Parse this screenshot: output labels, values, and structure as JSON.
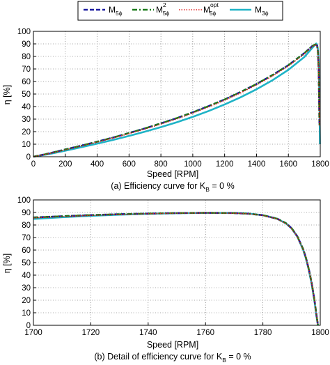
{
  "legend": [
    {
      "main": "M",
      "sub": "5ϕ",
      "sup": "",
      "color": "#1a1aa0",
      "dash": "6,3",
      "width": 2.6
    },
    {
      "main": "M",
      "sub": "5ϕ",
      "sup": "2",
      "color": "#1a7a1a",
      "dash": "7,3,2,3",
      "width": 2.4
    },
    {
      "main": "M",
      "sub": "5ϕ",
      "sup": "opt",
      "color": "#e02020",
      "dash": "1.5,2",
      "width": 1.6
    },
    {
      "main": "M",
      "sub": "3ϕ",
      "sup": "",
      "color": "#1fb3c6",
      "dash": "",
      "width": 2.6
    }
  ],
  "chart_data": [
    {
      "type": "line",
      "caption": {
        "pre": "(a) Efficiency curve for K",
        "sub": "B",
        "post": " = 0 %"
      },
      "xlabel": "Speed [RPM]",
      "ylabel": "η [%]",
      "xlim": [
        0,
        1800
      ],
      "ylim": [
        0,
        100
      ],
      "xticks": [
        0,
        200,
        400,
        600,
        800,
        1000,
        1200,
        1400,
        1600,
        1800
      ],
      "yticks": [
        0,
        10,
        20,
        30,
        40,
        50,
        60,
        70,
        80,
        90,
        100
      ],
      "grid": true,
      "series": [
        {
          "x": [
            0,
            100,
            200,
            300,
            400,
            500,
            600,
            700,
            800,
            900,
            1000,
            1100,
            1200,
            1300,
            1400,
            1500,
            1600,
            1700,
            1750,
            1770,
            1780,
            1785,
            1790,
            1795
          ],
          "y": [
            0,
            2.7,
            5.8,
            8.8,
            12.0,
            15.3,
            18.9,
            22.6,
            26.6,
            30.8,
            35.4,
            40.4,
            45.7,
            51.6,
            58.0,
            65.1,
            73.0,
            82.6,
            88.3,
            89.6,
            88.6,
            84.0,
            70.0,
            25.0
          ]
        },
        {
          "x": [
            0,
            100,
            200,
            300,
            400,
            500,
            600,
            700,
            800,
            900,
            1000,
            1100,
            1200,
            1300,
            1400,
            1500,
            1600,
            1700,
            1750,
            1770,
            1780,
            1785,
            1790,
            1795
          ],
          "y": [
            0,
            2.7,
            5.8,
            8.8,
            12.0,
            15.3,
            18.9,
            22.6,
            26.6,
            30.8,
            35.4,
            40.4,
            45.7,
            51.6,
            58.0,
            65.1,
            73.0,
            82.6,
            88.3,
            89.6,
            88.6,
            84.0,
            70.0,
            25.0
          ]
        },
        {
          "x": [
            0,
            100,
            200,
            300,
            400,
            500,
            600,
            700,
            800,
            900,
            1000,
            1100,
            1200,
            1300,
            1400,
            1500,
            1600,
            1700,
            1750,
            1770,
            1780,
            1785,
            1790,
            1795
          ],
          "y": [
            0,
            2.5,
            5.5,
            8.5,
            11.6,
            14.9,
            18.4,
            22.1,
            26.0,
            30.2,
            34.8,
            39.7,
            45.0,
            50.9,
            57.3,
            64.4,
            72.3,
            81.9,
            87.8,
            89.4,
            88.8,
            84.0,
            70.0,
            25.0
          ]
        },
        {
          "x": [
            0,
            100,
            200,
            300,
            400,
            500,
            600,
            700,
            800,
            900,
            1000,
            1100,
            1200,
            1300,
            1400,
            1500,
            1600,
            1700,
            1750,
            1770,
            1775,
            1780,
            1785,
            1790,
            1795,
            1798
          ],
          "y": [
            0,
            2.2,
            4.8,
            7.6,
            10.4,
            13.4,
            16.6,
            20.0,
            23.6,
            27.5,
            31.8,
            36.5,
            41.7,
            47.4,
            53.8,
            61.0,
            69.3,
            79.5,
            86.8,
            89.6,
            90.3,
            89.5,
            86.0,
            75.0,
            45.0,
            10.0
          ]
        }
      ]
    },
    {
      "type": "line",
      "caption": {
        "pre": "(b) Detail of efficiency curve for K",
        "sub": "B",
        "post": " = 0 %"
      },
      "xlabel": "Speed [RPM]",
      "ylabel": "η [%]",
      "xlim": [
        1700,
        1800
      ],
      "ylim": [
        0,
        100
      ],
      "xticks": [
        1700,
        1720,
        1740,
        1760,
        1780,
        1800
      ],
      "yticks": [
        0,
        10,
        20,
        30,
        40,
        50,
        60,
        70,
        80,
        90,
        100
      ],
      "grid": true,
      "series": [
        {
          "x": [
            1700,
            1710,
            1720,
            1730,
            1740,
            1750,
            1760,
            1770,
            1775,
            1780,
            1785,
            1788,
            1790,
            1792,
            1794,
            1795,
            1796,
            1797,
            1798,
            1798.7,
            1799.2
          ],
          "y": [
            86.0,
            87.0,
            87.9,
            88.6,
            89.1,
            89.5,
            89.7,
            89.5,
            89.0,
            87.8,
            85.0,
            81.5,
            77.5,
            71.0,
            61.0,
            54.0,
            45.0,
            34.0,
            20.0,
            8.0,
            0
          ]
        },
        {
          "x": [
            1700,
            1710,
            1720,
            1730,
            1740,
            1750,
            1760,
            1770,
            1775,
            1780,
            1785,
            1788,
            1790,
            1792,
            1794,
            1795,
            1796,
            1797,
            1798,
            1798.7,
            1799.2
          ],
          "y": [
            86.0,
            87.0,
            87.9,
            88.6,
            89.1,
            89.5,
            89.7,
            89.5,
            89.0,
            87.8,
            85.0,
            81.5,
            77.5,
            71.0,
            61.0,
            54.0,
            45.0,
            34.0,
            20.0,
            8.0,
            0
          ]
        },
        {
          "x": [
            1700,
            1710,
            1720,
            1730,
            1740,
            1750,
            1760,
            1770,
            1775,
            1780,
            1785,
            1788,
            1790,
            1792,
            1794,
            1795,
            1796,
            1797,
            1798,
            1798.7,
            1799.2
          ],
          "y": [
            85.6,
            86.7,
            87.6,
            88.4,
            89.0,
            89.4,
            89.6,
            89.4,
            88.9,
            87.6,
            84.8,
            81.2,
            77.2,
            70.6,
            60.6,
            53.6,
            44.6,
            33.6,
            19.6,
            7.6,
            0
          ]
        },
        {
          "x": [
            1700,
            1710,
            1720,
            1730,
            1740,
            1750,
            1760,
            1770,
            1775,
            1780,
            1785,
            1788,
            1790,
            1792,
            1794,
            1795,
            1796,
            1797,
            1798,
            1798.7,
            1799.2
          ],
          "y": [
            84.8,
            86.2,
            87.3,
            88.2,
            88.9,
            89.4,
            89.7,
            89.6,
            89.1,
            87.8,
            84.9,
            81.3,
            77.3,
            70.7,
            60.5,
            53.3,
            44.2,
            33.0,
            19.0,
            7.0,
            0
          ]
        }
      ]
    }
  ]
}
